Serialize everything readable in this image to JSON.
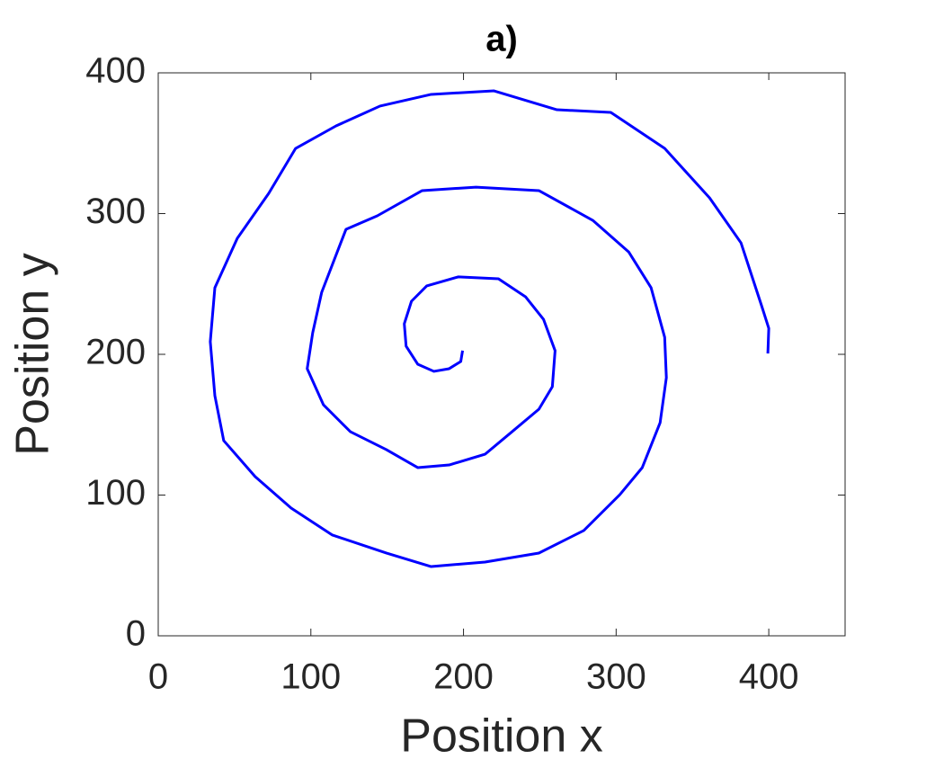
{
  "chart_data": {
    "type": "line",
    "title": "a)",
    "x_label": "Position x",
    "y_label": "Position y",
    "xlim": [
      0,
      450
    ],
    "xticks": [
      0,
      100,
      200,
      300,
      400
    ],
    "ylim": [
      0,
      400
    ],
    "yticks": [
      0,
      100,
      200,
      300,
      400
    ],
    "series": [
      {
        "color": "#0000ff",
        "x": [
          199.4,
          198.2,
          190.6,
          180.6,
          170,
          162.4,
          161.2,
          165.9,
          175.9,
          196.5,
          222.9,
          240.6,
          252.4,
          260,
          258.2,
          249.4,
          231.8,
          214.1,
          190.6,
          170,
          149.4,
          125.9,
          108.2,
          97.6,
          101.2,
          107.1,
          123,
          143.5,
          172.9,
          208.2,
          249.4,
          284.7,
          308.2,
          322.9,
          331.8,
          332.9,
          328.8,
          317.1,
          302.4,
          278.8,
          249.4,
          214.1,
          178.8,
          149.4,
          114.1,
          87.1,
          63.5,
          42.9,
          37.1,
          34.1,
          37.1,
          51.8,
          72.4,
          90,
          116.5,
          145.3,
          178.8,
          220,
          261.2,
          296.5,
          331.8,
          361.2,
          381.8,
          395.3,
          400,
          399.4
        ],
        "values": [
          202.6,
          194.9,
          189.8,
          187.9,
          193,
          205.8,
          221.7,
          237.7,
          248.6,
          255,
          253.7,
          240.9,
          224.9,
          202.6,
          177,
          161,
          145,
          129,
          121.4,
          119.5,
          132.3,
          145,
          164.2,
          189.8,
          215.3,
          244.1,
          288.8,
          298.4,
          316.3,
          318.8,
          316.3,
          295.2,
          272.8,
          247.3,
          212.1,
          183.4,
          151.4,
          119.5,
          100.3,
          74.8,
          58.8,
          52.4,
          49.2,
          58.8,
          71.6,
          90.7,
          113.1,
          138.7,
          170.6,
          209,
          247.3,
          282.4,
          314.4,
          346.3,
          362.3,
          376.4,
          384.7,
          387.2,
          373.8,
          371.9,
          346.3,
          311.2,
          279.2,
          234.5,
          218.5,
          200.6
        ]
      }
    ]
  }
}
